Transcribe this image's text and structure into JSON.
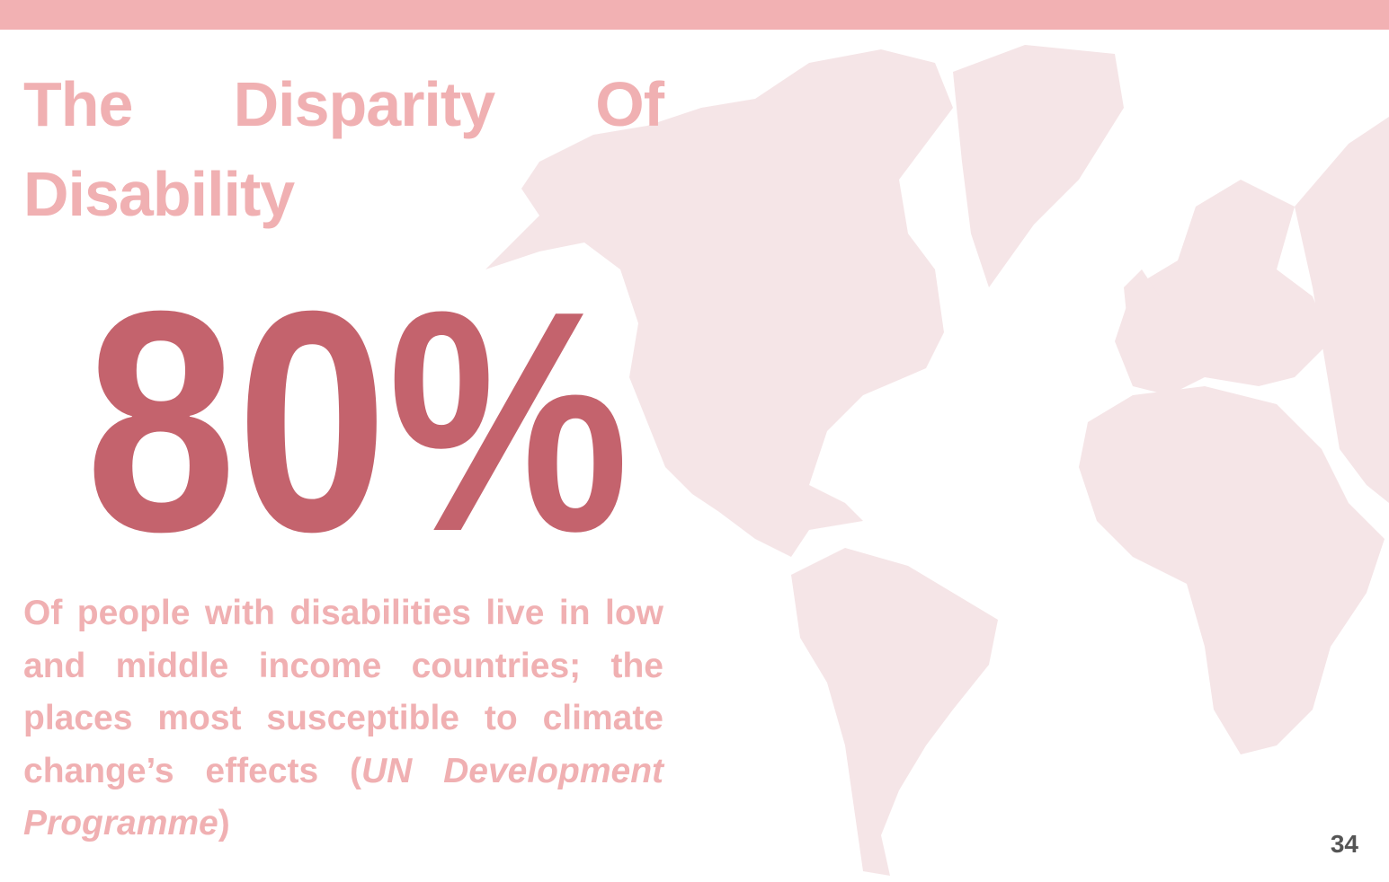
{
  "title": "The Disparity Of Disability",
  "stat": "80%",
  "description": {
    "text": "Of people with disabilities live in low and middle income countries; the places most susceptible to climate change’s effects (",
    "source": "UN Development Programme",
    "close": ")"
  },
  "page_number": "34"
}
